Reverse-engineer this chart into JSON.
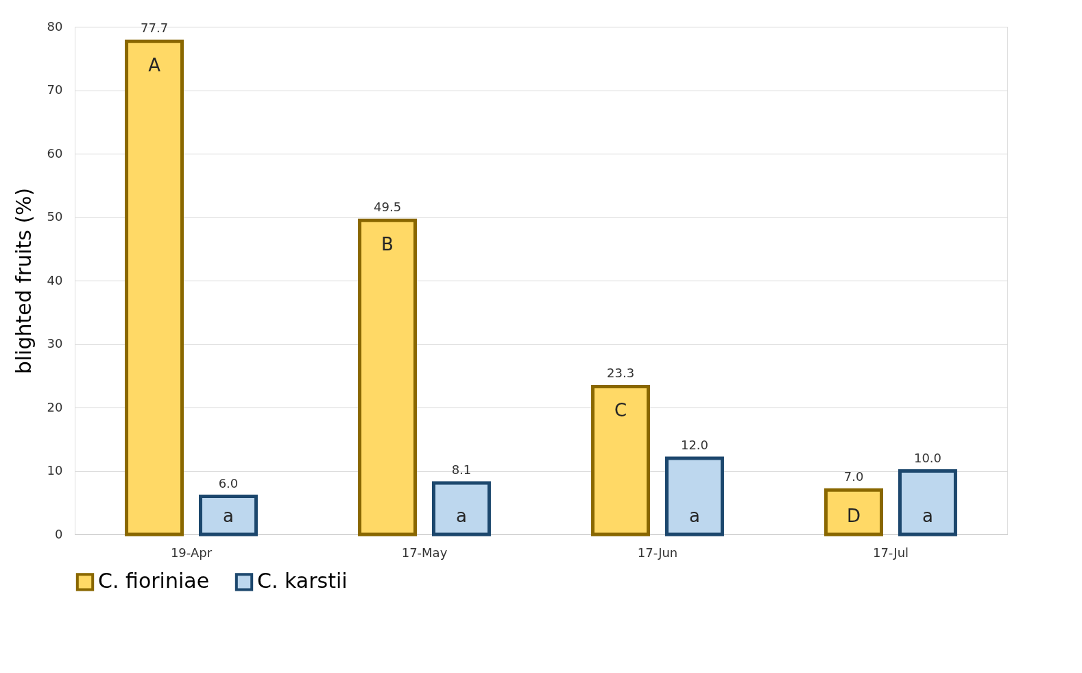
{
  "chart_data": {
    "type": "bar",
    "ylabel": "blighted fruits (%)",
    "categories": [
      "19-Apr",
      "17-May",
      "17-Jun",
      "17-Jul"
    ],
    "series": [
      {
        "name": "C. fioriniae",
        "color": "#ffd966",
        "values": [
          77.7,
          49.5,
          23.3,
          7.0
        ],
        "value_labels": [
          "77.7",
          "49.5",
          "23.3",
          "7.0"
        ]
      },
      {
        "name": "C. karstii",
        "color": "#bdd7ee",
        "values": [
          6.0,
          8.1,
          12.0,
          10.0
        ],
        "value_labels": [
          "6.0",
          "8.1",
          "12.0",
          "10.0"
        ]
      }
    ],
    "ylim": [
      0,
      80
    ],
    "yticks": [
      0,
      10,
      20,
      30,
      40,
      50,
      60,
      70,
      80
    ],
    "grid": "y",
    "legend": "bottom",
    "annotations": [
      "A",
      "a",
      "B",
      "a",
      "C",
      "a",
      "D",
      "a"
    ]
  }
}
